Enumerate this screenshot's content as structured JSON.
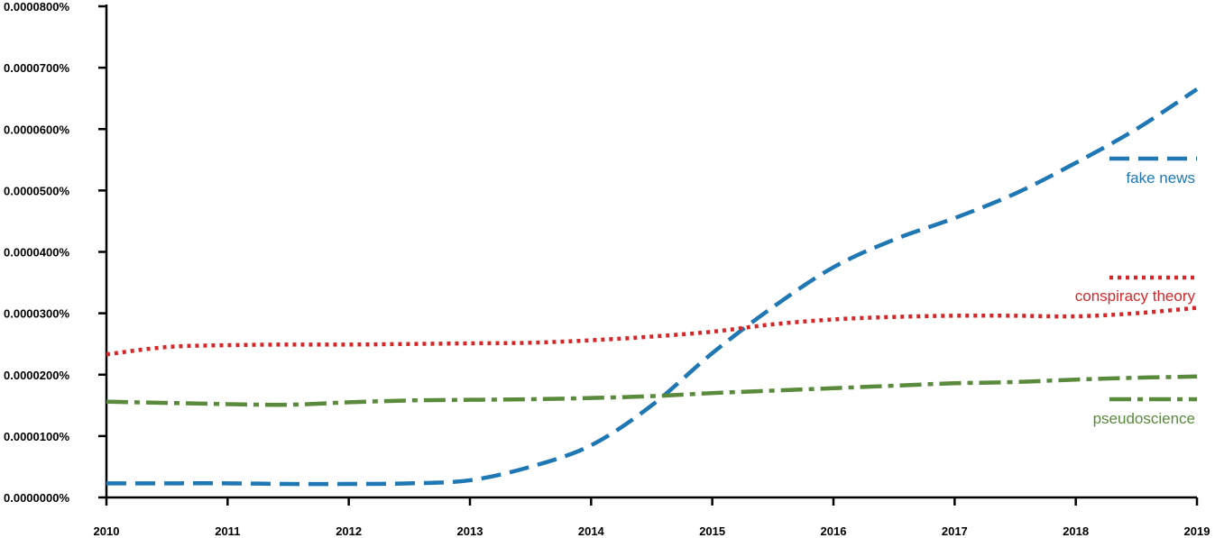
{
  "chart_data": {
    "type": "line",
    "x": [
      2010,
      2010.5,
      2011,
      2011.5,
      2012,
      2012.5,
      2013,
      2013.5,
      2014,
      2014.5,
      2015,
      2015.5,
      2016,
      2016.5,
      2017,
      2017.5,
      2018,
      2018.5,
      2019
    ],
    "x_ticks": [
      "2010",
      "2011",
      "2012",
      "2013",
      "2014",
      "2015",
      "2016",
      "2017",
      "2018",
      "2019"
    ],
    "y_ticks": [
      "0.0000000%",
      "0.0000100%",
      "0.0000200%",
      "0.0000300%",
      "0.0000400%",
      "0.0000500%",
      "0.0000600%",
      "0.0000700%",
      "0.0000800%"
    ],
    "ylim": [
      0,
      8e-05
    ],
    "xlim": [
      2010,
      2019
    ],
    "series": [
      {
        "name": "fake news",
        "color": "#1f77b4",
        "dash": "dashed",
        "values": [
          2.3e-06,
          2.3e-06,
          2.3e-06,
          2.2e-06,
          2.2e-06,
          2.3e-06,
          2.8e-06,
          5e-06,
          8.5e-06,
          1.5e-05,
          2.35e-05,
          3.1e-05,
          3.75e-05,
          4.2e-05,
          4.55e-05,
          4.95e-05,
          5.45e-05,
          6e-05,
          6.65e-05
        ]
      },
      {
        "name": "conspiracy theory",
        "color": "#d62728",
        "dash": "dotted",
        "values": [
          2.33e-05,
          2.45e-05,
          2.48e-05,
          2.49e-05,
          2.49e-05,
          2.5e-05,
          2.51e-05,
          2.52e-05,
          2.56e-05,
          2.62e-05,
          2.7e-05,
          2.82e-05,
          2.9e-05,
          2.94e-05,
          2.96e-05,
          2.96e-05,
          2.95e-05,
          3e-05,
          3.09e-05
        ]
      },
      {
        "name": "pseudoscience",
        "color": "#5a8a3c",
        "dash": "dashdot",
        "values": [
          1.56e-05,
          1.54e-05,
          1.52e-05,
          1.51e-05,
          1.55e-05,
          1.58e-05,
          1.59e-05,
          1.6e-05,
          1.62e-05,
          1.65e-05,
          1.7e-05,
          1.74e-05,
          1.78e-05,
          1.82e-05,
          1.86e-05,
          1.88e-05,
          1.92e-05,
          1.95e-05,
          1.97e-05
        ]
      }
    ],
    "legend_placement": "right, next to line ends",
    "grid": false
  }
}
